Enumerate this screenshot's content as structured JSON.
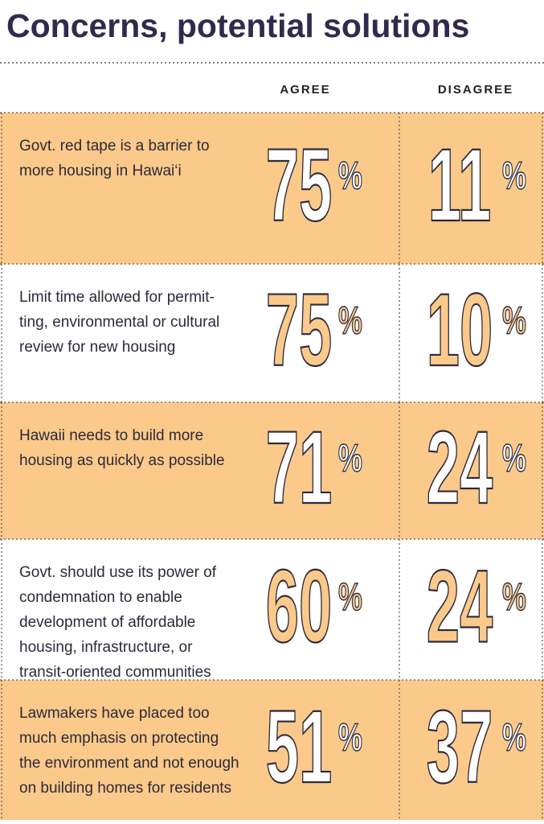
{
  "header": {
    "title": "Concerns, potential solutions"
  },
  "table": {
    "columns": [
      "AGREE",
      "DISAGREE"
    ],
    "unit": "%",
    "rows": [
      {
        "statement": "Govt. red tape is a barrier to more housing in Hawai‘i",
        "agree": 75,
        "disagree": 11
      },
      {
        "statement": "Limit time allowed for permit-ting, environmental or cultural review for new housing",
        "agree": 75,
        "disagree": 10
      },
      {
        "statement": "Hawaii needs to build more housing as quickly as possible",
        "agree": 71,
        "disagree": 24
      },
      {
        "statement": "Govt. should use its power of condemnation to enable development of affordable housing, infrastructure, or transit-oriented communities",
        "agree": 60,
        "disagree": 24
      },
      {
        "statement": "Lawmakers have placed too much emphasis on protecting the environment and not enough on building homes for residents",
        "agree": 51,
        "disagree": 37
      }
    ]
  }
}
